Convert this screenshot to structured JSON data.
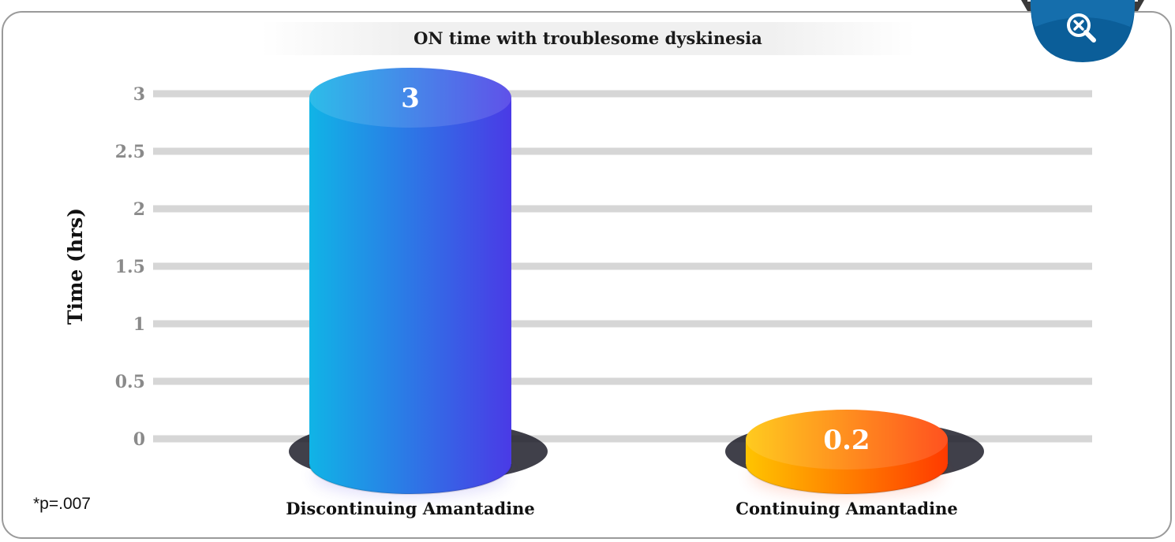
{
  "chart_data": {
    "type": "bar",
    "title": "ON time with troublesome dyskinesia",
    "ylabel": "Time (hrs)",
    "xlabel": "",
    "ylim": [
      0,
      3
    ],
    "yticks": [
      {
        "value": 3,
        "label": "3"
      },
      {
        "value": 2.5,
        "label": "2.5"
      },
      {
        "value": 2,
        "label": "2"
      },
      {
        "value": 1.5,
        "label": "1.5"
      },
      {
        "value": 1,
        "label": "1"
      },
      {
        "value": 0.5,
        "label": "0.5"
      },
      {
        "value": 0,
        "label": "0"
      }
    ],
    "categories": [
      "Discontinuing Amantadine",
      "Continuing Amantadine"
    ],
    "values": [
      3,
      0.2
    ],
    "data_labels": [
      "3",
      "0.2"
    ],
    "grid": true,
    "colors": [
      {
        "start": "#10b4e6",
        "end": "#4a3ae6"
      },
      {
        "start": "#ffc400",
        "end": "#ff3a00"
      }
    ]
  },
  "footnote": "*p=.007",
  "zoom_button": {
    "icon": "zoom-out-magnifier-icon",
    "color": "#0b5e99"
  }
}
